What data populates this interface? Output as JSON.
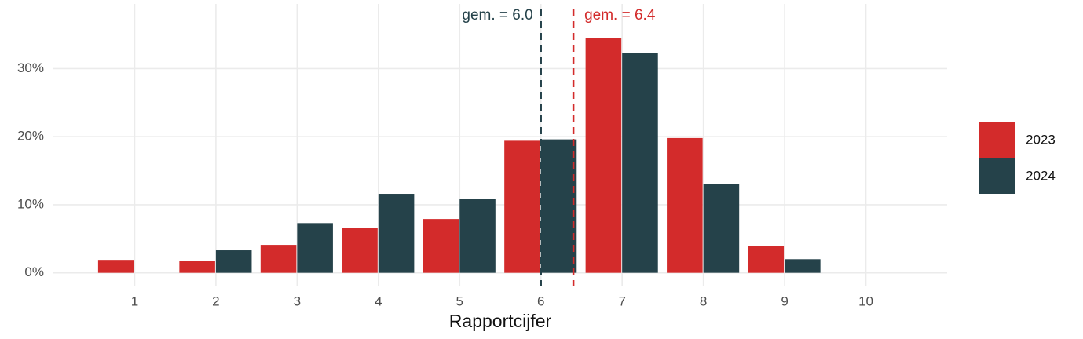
{
  "chart_data": {
    "type": "bar",
    "x_label": "Rapportcijfer",
    "x": [
      1,
      2,
      3,
      4,
      5,
      6,
      7,
      8,
      9,
      10
    ],
    "series": [
      {
        "name": "2023",
        "color": "#d32b2b",
        "values": [
          1.9,
          1.8,
          4.1,
          6.6,
          7.9,
          19.4,
          34.5,
          19.8,
          3.9,
          0
        ]
      },
      {
        "name": "2024",
        "color": "#25424a",
        "values": [
          0,
          3.3,
          7.3,
          11.6,
          10.8,
          19.6,
          32.3,
          13.0,
          2.0,
          0
        ]
      }
    ],
    "mean_lines": [
      {
        "value": 6.0,
        "label": "gem. = 6.0",
        "color": "#25424a"
      },
      {
        "value": 6.4,
        "label": "gem. = 6.4",
        "color": "#d32b2b"
      }
    ],
    "xlim": [
      0,
      11
    ],
    "xticks": [
      1,
      2,
      3,
      4,
      5,
      6,
      7,
      8,
      9,
      10
    ],
    "ylim": [
      -2,
      39.5
    ],
    "yticks": [
      {
        "value": 0,
        "label": "0%"
      },
      {
        "value": 10,
        "label": "10%"
      },
      {
        "value": 20,
        "label": "20%"
      },
      {
        "value": 30,
        "label": "30%"
      }
    ],
    "grid": true,
    "legend": "right"
  }
}
